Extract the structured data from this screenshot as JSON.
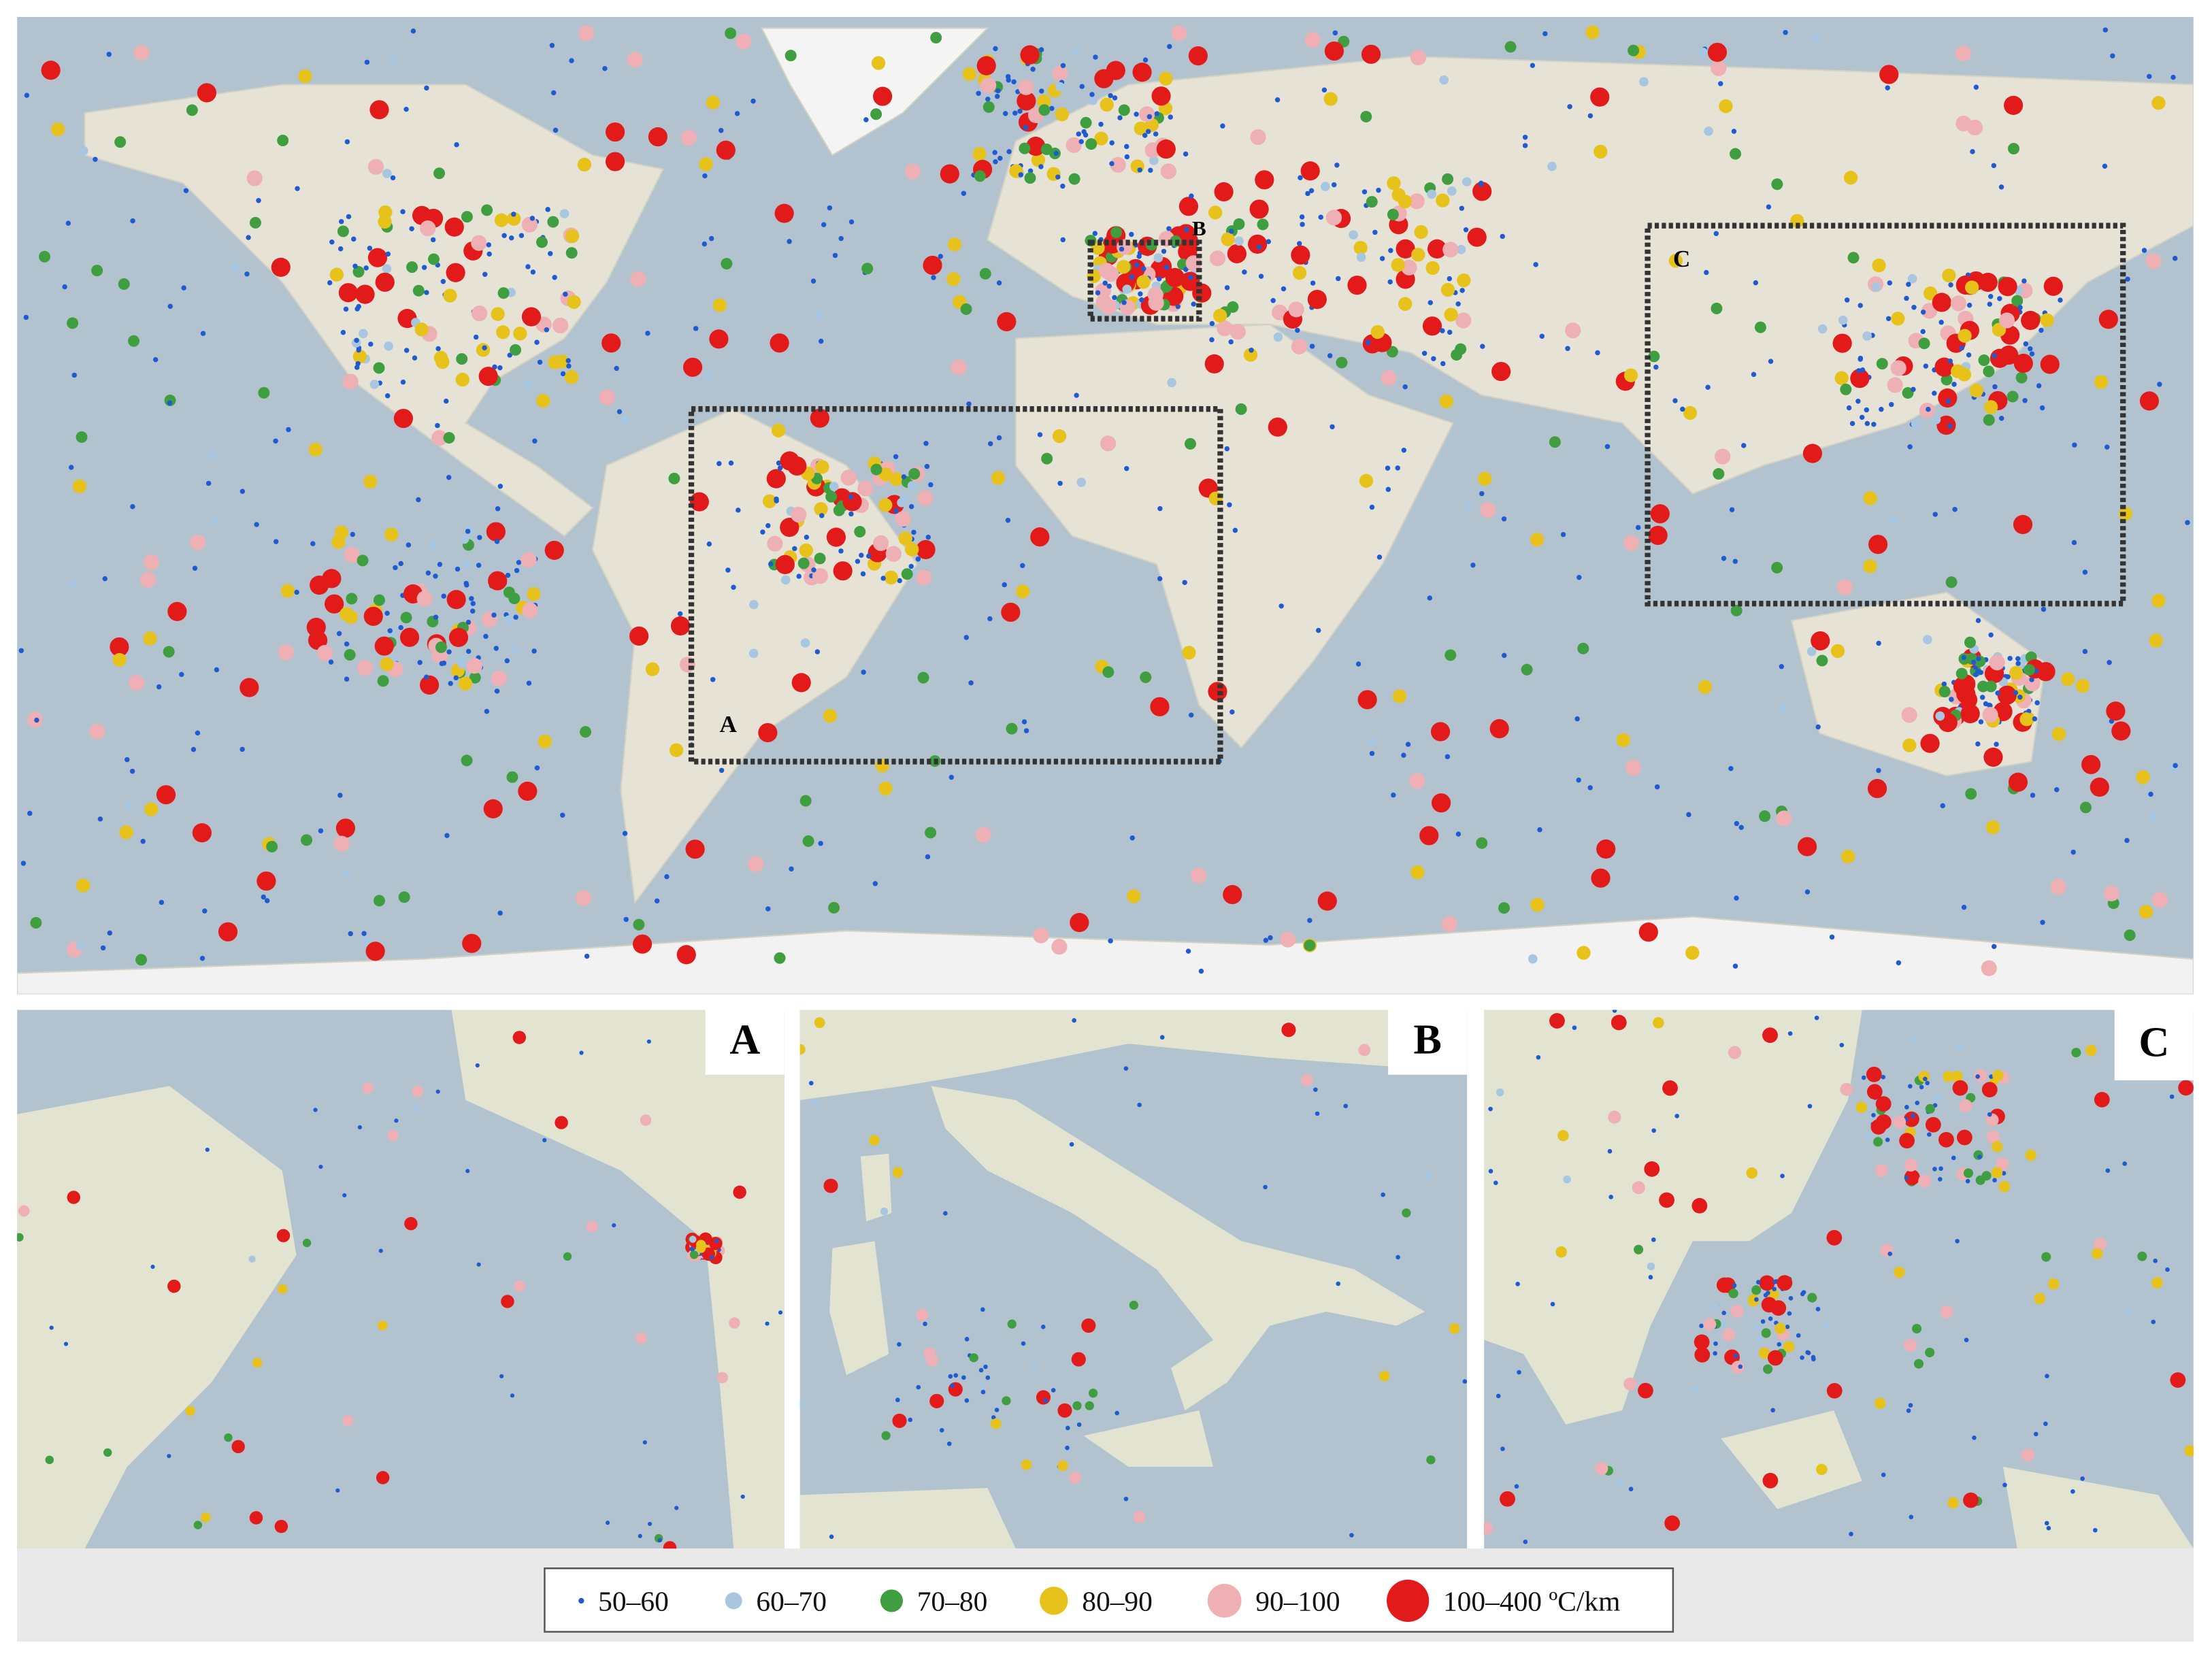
{
  "map": {
    "regions": [
      {
        "label": "A"
      },
      {
        "label": "B"
      },
      {
        "label": "C"
      }
    ],
    "insets": [
      {
        "label": "A"
      },
      {
        "label": "B"
      },
      {
        "label": "C"
      }
    ]
  },
  "legend": {
    "items": [
      {
        "label": "50–60",
        "color": "#1f5bd0"
      },
      {
        "label": "60–70",
        "color": "#a9c6e0"
      },
      {
        "label": "70–80",
        "color": "#3f9e3f"
      },
      {
        "label": "80–90",
        "color": "#e6c21a"
      },
      {
        "label": "90–100",
        "color": "#eeb0b4"
      },
      {
        "label": "100–400 ºC/km",
        "color": "#e31a1a"
      }
    ]
  }
}
